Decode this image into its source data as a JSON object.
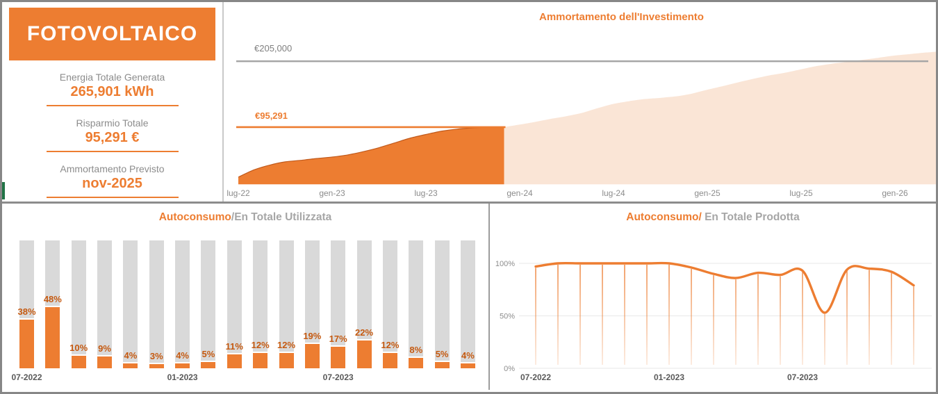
{
  "summary": {
    "title": "FOTOVOLTAICO",
    "stats": [
      {
        "label": "Energia Totale Generata",
        "value": "265,901  kWh"
      },
      {
        "label": "Risparmio Totale",
        "value": "95,291 €"
      },
      {
        "label": "Ammortamento Previsto",
        "value": "nov-2025"
      }
    ]
  },
  "colors": {
    "accent_orange": "#ED7D31",
    "dark_orange_label": "#C55A11",
    "forecast_fill": "#FAE5D6",
    "bar_background": "#D9D9D9",
    "reference_gray": "#A6A6A6",
    "text_gray": "#8C8C8C",
    "tick_dark_gray": "#595959",
    "grid_light": "#ECECEC",
    "green_accent": "#217346"
  },
  "chart_data": [
    {
      "id": "amortization",
      "type": "area",
      "title": "Ammortamento dell'Investimento",
      "unit": "EUR",
      "ylim": [
        0,
        222000
      ],
      "reference_lines": [
        {
          "label": "€205,000",
          "value": 205000,
          "color": "#A6A6A6"
        },
        {
          "label": "€95,291",
          "value": 95291,
          "color": "#ED7D31"
        }
      ],
      "x_tick_labels": [
        "lug-22",
        "gen-23",
        "lug-23",
        "gen-24",
        "lug-24",
        "gen-25",
        "lug-25",
        "gen-26"
      ],
      "tick_interval_months": 6,
      "series": [
        {
          "name": "cumulative-savings-actual",
          "color": "#ED7D31",
          "monthly_cumulative": [
            12000,
            24000,
            32000,
            37500,
            40000,
            43000,
            45500,
            49000,
            54500,
            61000,
            69000,
            77000,
            83000,
            88500,
            92000,
            94000,
            95000,
            95291
          ]
        },
        {
          "name": "cumulative-savings-forecast",
          "color": "#FAE5D6",
          "monthly_cumulative": [
            95291,
            99500,
            104000,
            109000,
            113500,
            119000,
            127000,
            134000,
            138500,
            142000,
            144000,
            146500,
            151000,
            157500,
            163500,
            170000,
            176000,
            181500,
            186000,
            191500,
            197000,
            201000,
            204000,
            207500,
            211000,
            214500,
            217000,
            219500,
            221500
          ]
        }
      ]
    },
    {
      "id": "autoconsumo-su-energia-utilizzata",
      "type": "bar",
      "title_primary": "Autoconsumo",
      "title_secondary": "/En Totale Utilizzata",
      "ylim": [
        0,
        100
      ],
      "values_pct": [
        38,
        48,
        10,
        9,
        4,
        3,
        4,
        5,
        11,
        12,
        12,
        19,
        17,
        22,
        12,
        8,
        5,
        4
      ],
      "x_ticks": [
        {
          "index": 0,
          "label": "07-2022"
        },
        {
          "index": 6,
          "label": "01-2023"
        },
        {
          "index": 12,
          "label": "07-2023"
        }
      ]
    },
    {
      "id": "autoconsumo-su-energia-prodotta",
      "type": "line",
      "title_primary": "Autoconsumo/",
      "title_secondary": " En Totale Prodotta",
      "ylim": [
        0,
        100
      ],
      "y_tick_labels": [
        "100%",
        "50%",
        "0%"
      ],
      "values_pct": [
        97,
        100,
        100,
        100,
        100,
        100,
        100,
        96,
        90,
        86,
        91,
        89,
        93,
        53,
        94,
        95,
        92,
        79
      ],
      "x_ticks": [
        {
          "index": 0,
          "label": "07-2022"
        },
        {
          "index": 6,
          "label": "01-2023"
        },
        {
          "index": 12,
          "label": "07-2023"
        }
      ]
    }
  ]
}
